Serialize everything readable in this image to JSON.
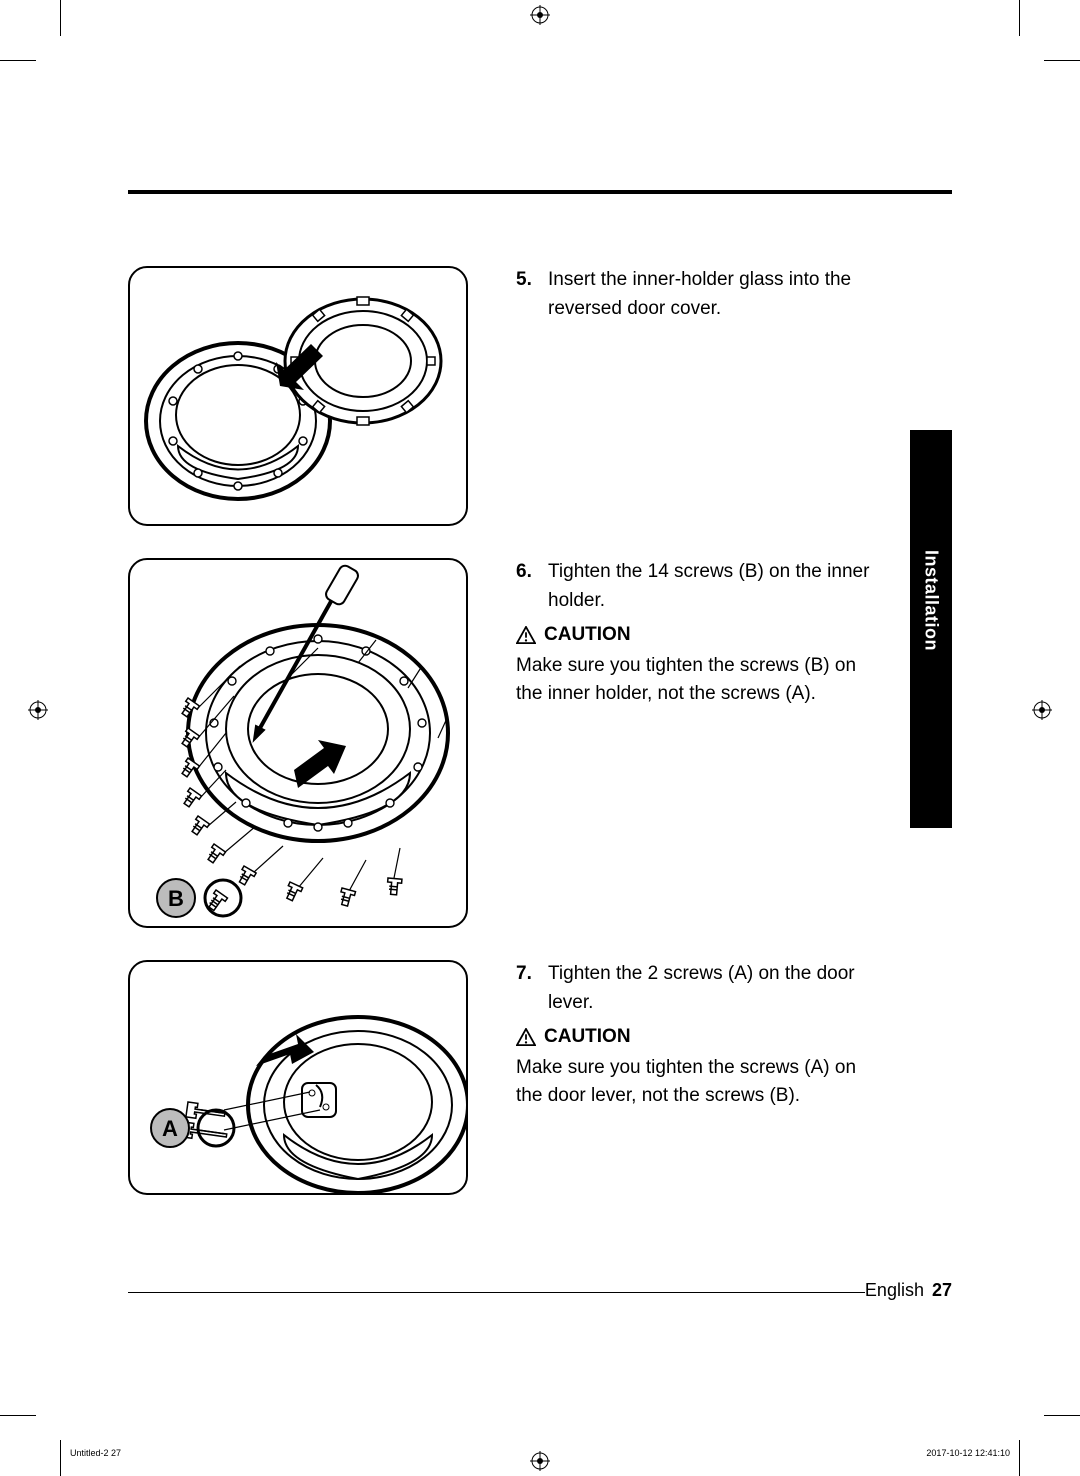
{
  "side_tab": "Installation",
  "steps": [
    {
      "num": "5.",
      "body": "Insert the inner-holder glass into the reversed door cover.",
      "has_caution": false,
      "fig_label": null
    },
    {
      "num": "6.",
      "body": "Tighten the 14 screws (B) on the inner holder.",
      "has_caution": true,
      "caution_label": "CAUTION",
      "caution_body": "Make sure you tighten the screws (B) on the inner holder, not the screws (A).",
      "fig_label": "B"
    },
    {
      "num": "7.",
      "body": "Tighten the 2 screws (A) on the door lever.",
      "has_caution": true,
      "caution_label": "CAUTION",
      "caution_body": "Make sure you tighten the screws (A) on the door lever, not the screws (B).",
      "fig_label": "A"
    }
  ],
  "footer_lang": "English",
  "footer_page": "27",
  "tiny_left": "Untitled-2   27",
  "tiny_right": "2017-10-12   12:41:10",
  "figure_height_1": 260,
  "figure_height_2": 370,
  "figure_height_3": 235,
  "colors": {
    "rule": "#000000",
    "bg": "#ffffff",
    "tab_bg": "#000000",
    "tab_fg": "#ffffff",
    "label_bg": "#bcbcbc"
  }
}
